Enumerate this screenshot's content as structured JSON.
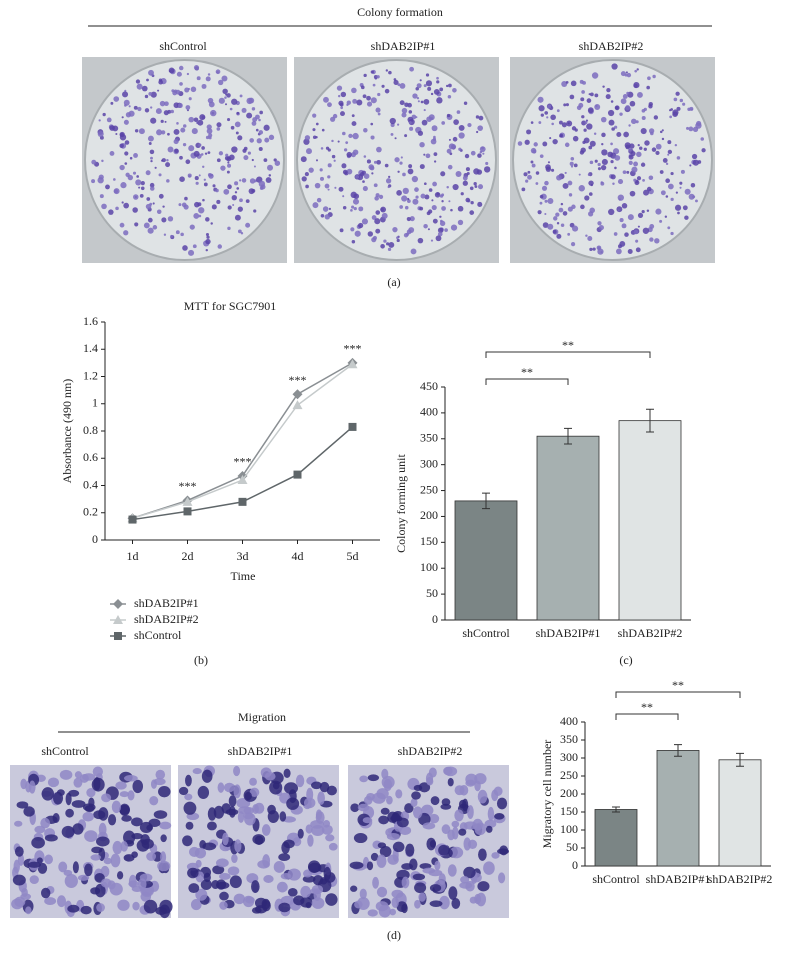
{
  "panel_a": {
    "title": "Colony formation",
    "labels": [
      "shControl",
      "shDAB2IP#1",
      "shDAB2IP#2"
    ],
    "caption": "(a)"
  },
  "chart_data": [
    {
      "type": "line",
      "title": "MTT for SGC7901",
      "x_label": "Time",
      "y_label": "Absorbance (490 nm)",
      "categories": [
        "1d",
        "2d",
        "3d",
        "4d",
        "5d"
      ],
      "series": [
        {
          "name": "shDAB2IP#1",
          "color": "#8a8f93",
          "marker": "diamond",
          "values": [
            0.16,
            0.29,
            0.47,
            1.07,
            1.3
          ]
        },
        {
          "name": "shDAB2IP#2",
          "color": "#c5cacb",
          "marker": "triangle",
          "values": [
            0.16,
            0.28,
            0.44,
            0.99,
            1.29
          ]
        },
        {
          "name": "shControl",
          "color": "#5f6669",
          "marker": "square",
          "values": [
            0.15,
            0.21,
            0.28,
            0.48,
            0.83
          ]
        }
      ],
      "annotations": [
        null,
        "***",
        "***",
        "***",
        "***"
      ],
      "ylim": [
        0,
        1.6
      ],
      "yticks": [
        0,
        0.2,
        0.4,
        0.6,
        0.8,
        1,
        1.2,
        1.4,
        1.6
      ],
      "legend": "bottom-left",
      "caption": "(b)"
    },
    {
      "type": "bar",
      "y_label": "Colony forming unit",
      "categories": [
        "shControl",
        "shDAB2IP#1",
        "shDAB2IP#2"
      ],
      "values": [
        230,
        355,
        385
      ],
      "errors": [
        15,
        15,
        22
      ],
      "colors": [
        "#7b8585",
        "#a6b0b0",
        "#e0e4e4"
      ],
      "significance": [
        {
          "from": 0,
          "to": 1,
          "label": "**"
        },
        {
          "from": 0,
          "to": 2,
          "label": "**"
        }
      ],
      "ylim": [
        0,
        450
      ],
      "yticks": [
        0,
        50,
        100,
        150,
        200,
        250,
        300,
        350,
        400,
        450
      ],
      "caption": "(c)"
    },
    {
      "type": "bar",
      "y_label": "Migratory cell number",
      "categories": [
        "shControl",
        "shDAB2IP#1",
        "shDAB2IP#2"
      ],
      "values": [
        157,
        321,
        295
      ],
      "errors": [
        7,
        16,
        18
      ],
      "colors": [
        "#7b8585",
        "#a6b0b0",
        "#e0e4e4"
      ],
      "significance": [
        {
          "from": 0,
          "to": 1,
          "label": "**"
        },
        {
          "from": 0,
          "to": 2,
          "label": "**"
        }
      ],
      "ylim": [
        0,
        400
      ],
      "yticks": [
        0,
        50,
        100,
        150,
        200,
        250,
        300,
        350,
        400
      ]
    }
  ],
  "panel_d": {
    "title": "Migration",
    "labels": [
      "shControl",
      "shDAB2IP#1",
      "shDAB2IP#2"
    ],
    "caption": "(d)"
  }
}
